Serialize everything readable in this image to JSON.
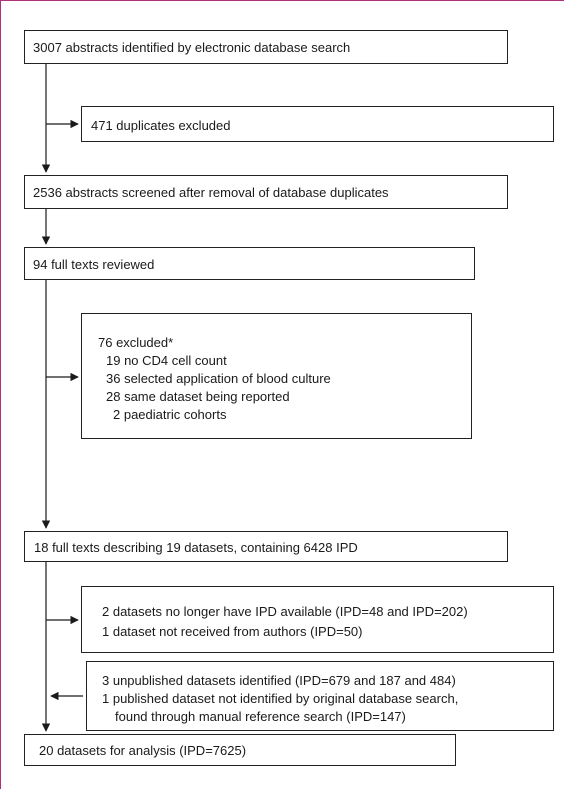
{
  "boxes": {
    "identified": "3007 abstracts identified by electronic database search",
    "duplicates": "471 duplicates excluded",
    "screened": "2536 abstracts screened after removal of database duplicates",
    "fulltexts": "94 full texts reviewed",
    "excluded": {
      "title": "76 excluded*",
      "items": [
        "19 no CD4 cell count",
        "36 selected application of blood culture",
        "28 same dataset being reported",
        "2 paediatric cohorts"
      ]
    },
    "datasets": "18 full texts describing 19 datasets, containing 6428 IPD",
    "unavailable": [
      "2 datasets no longer have IPD available (IPD=48 and IPD=202)",
      "1 dataset not received from authors (IPD=50)"
    ],
    "added": [
      "3 unpublished datasets identified (IPD=679 and 187 and 484)",
      "1 published dataset not identified by original database search,",
      "found through manual reference search (IPD=147)"
    ],
    "analysis": "20 datasets for analysis (IPD=7625)"
  }
}
